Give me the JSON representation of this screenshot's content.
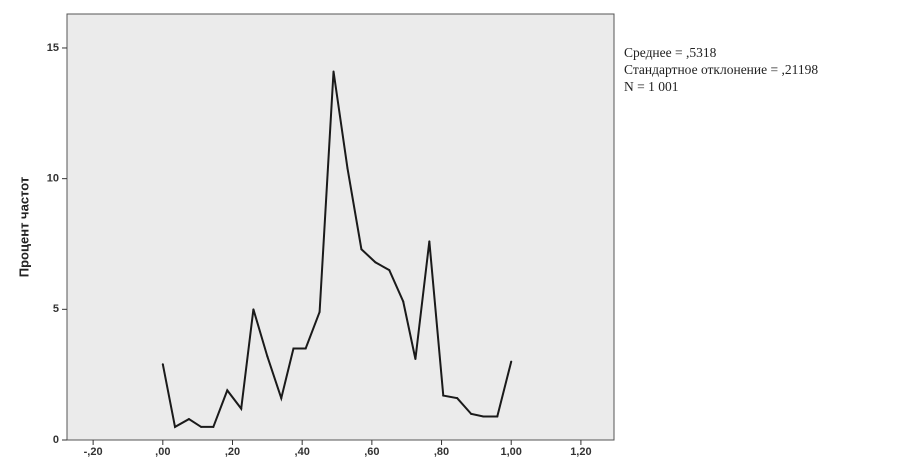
{
  "chart_data": {
    "type": "line",
    "title": "",
    "xlabel": "",
    "ylabel": "Процент частот",
    "xlim": [
      -0.275,
      1.295
    ],
    "ylim": [
      0,
      16.3
    ],
    "x_ticks": [
      -0.2,
      0,
      0.2,
      0.4,
      0.6,
      0.8,
      1.0,
      1.2
    ],
    "x_tick_labels": [
      "-,20",
      ",00",
      ",20",
      ",40",
      ",60",
      ",80",
      "1,00",
      "1,20"
    ],
    "y_ticks": [
      0,
      5,
      10,
      15
    ],
    "y_tick_labels": [
      "0",
      "5",
      "10",
      "15"
    ],
    "grid": false,
    "series": [
      {
        "x": [
          0.0,
          0.035,
          0.075,
          0.11,
          0.145,
          0.185,
          0.225,
          0.26,
          0.3,
          0.34,
          0.375,
          0.41,
          0.45,
          0.49,
          0.53,
          0.57,
          0.61,
          0.65,
          0.69,
          0.725,
          0.765,
          0.805,
          0.845,
          0.885,
          0.92,
          0.96,
          1.0
        ],
        "y": [
          2.9,
          0.5,
          0.8,
          0.5,
          0.5,
          1.9,
          1.2,
          5.0,
          3.2,
          1.6,
          3.5,
          3.5,
          4.9,
          14.1,
          10.4,
          7.3,
          6.8,
          6.5,
          5.3,
          3.1,
          7.6,
          1.7,
          1.6,
          1.0,
          0.9,
          0.9,
          3.0
        ],
        "color": "#1a1a1a"
      }
    ],
    "plot_background": "#ebebeb"
  },
  "stats": {
    "mean": "Среднее = ,5318",
    "std": "Стандартное отклонение = ,21198",
    "n": "N = 1 001"
  }
}
